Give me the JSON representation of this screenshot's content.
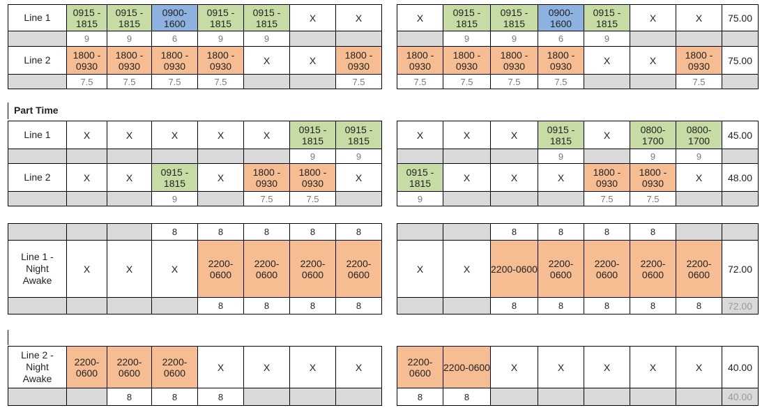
{
  "section_label": "Part Time",
  "blocks": [
    {
      "id": "ft",
      "top": 6,
      "rows": [
        {
          "kind": "main",
          "h": 38,
          "label": "Line 1",
          "total": "75.00",
          "left": [
            [
              "0915 - 1815",
              "g"
            ],
            [
              "0915 - 1815",
              "g"
            ],
            [
              "0900-1600",
              "b"
            ],
            [
              "0915 - 1815",
              "g"
            ],
            [
              "0915 - 1815",
              "g"
            ],
            [
              "X",
              "w"
            ],
            [
              "X",
              "w"
            ]
          ],
          "right": [
            [
              "X",
              "w"
            ],
            [
              "0915 - 1815",
              "g"
            ],
            [
              "0915 - 1815",
              "g"
            ],
            [
              "0900-1600",
              "b"
            ],
            [
              "0915 - 1815",
              "g"
            ],
            [
              "X",
              "w"
            ],
            [
              "X",
              "w"
            ]
          ]
        },
        {
          "kind": "sub",
          "h": 22,
          "label": "",
          "total": "",
          "left": [
            [
              "9",
              "w"
            ],
            [
              "9",
              "w"
            ],
            [
              "6",
              "w"
            ],
            [
              "9",
              "w"
            ],
            [
              "9",
              "w"
            ],
            [
              "",
              "gy"
            ],
            [
              "",
              "gy"
            ]
          ],
          "right": [
            [
              "",
              "gy"
            ],
            [
              "9",
              "w"
            ],
            [
              "9",
              "w"
            ],
            [
              "6",
              "w"
            ],
            [
              "9",
              "w"
            ],
            [
              "",
              "gy"
            ],
            [
              "",
              "gy"
            ]
          ]
        },
        {
          "kind": "main",
          "h": 40,
          "label": "Line 2",
          "total": "75.00",
          "left": [
            [
              "1800 - 0930",
              "o"
            ],
            [
              "1800 - 0930",
              "o"
            ],
            [
              "1800 - 0930",
              "o"
            ],
            [
              "1800 - 0930",
              "o"
            ],
            [
              "X",
              "w"
            ],
            [
              "X",
              "w"
            ],
            [
              "1800 - 0930",
              "o"
            ]
          ],
          "right": [
            [
              "1800 - 0930",
              "o"
            ],
            [
              "1800 - 0930",
              "o"
            ],
            [
              "1800 - 0930",
              "o"
            ],
            [
              "1800 - 0930",
              "o"
            ],
            [
              "X",
              "w"
            ],
            [
              "X",
              "w"
            ],
            [
              "1800 - 0930",
              "o"
            ]
          ]
        },
        {
          "kind": "sub",
          "h": 21,
          "label": "",
          "total": "",
          "left": [
            [
              "7.5",
              "w"
            ],
            [
              "7.5",
              "w"
            ],
            [
              "7.5",
              "w"
            ],
            [
              "7.5",
              "w"
            ],
            [
              "",
              "gy"
            ],
            [
              "",
              "gy"
            ],
            [
              "7.5",
              "w"
            ]
          ],
          "right": [
            [
              "7.5",
              "w"
            ],
            [
              "7.5",
              "w"
            ],
            [
              "7.5",
              "w"
            ],
            [
              "7.5",
              "w"
            ],
            [
              "",
              "gy"
            ],
            [
              "",
              "gy"
            ],
            [
              "7.5",
              "w"
            ]
          ]
        }
      ]
    },
    {
      "id": "pt",
      "top": 173,
      "rows": [
        {
          "kind": "main",
          "h": 40,
          "label": "Line 1",
          "total": "45.00",
          "left": [
            [
              "X",
              "w"
            ],
            [
              "X",
              "w"
            ],
            [
              "X",
              "w"
            ],
            [
              "X",
              "w"
            ],
            [
              "X",
              "w"
            ],
            [
              "0915 - 1815",
              "g"
            ],
            [
              "0915 - 1815",
              "g"
            ]
          ],
          "right": [
            [
              "X",
              "w"
            ],
            [
              "X",
              "w"
            ],
            [
              "X",
              "w"
            ],
            [
              "0915 - 1815",
              "g"
            ],
            [
              "X",
              "w"
            ],
            [
              "0800-1700",
              "g"
            ],
            [
              "0800-1700",
              "g"
            ]
          ]
        },
        {
          "kind": "sub",
          "h": 21,
          "label": "",
          "total": "",
          "left": [
            [
              "",
              "gy"
            ],
            [
              "",
              "gy"
            ],
            [
              "",
              "gy"
            ],
            [
              "",
              "gy"
            ],
            [
              "",
              "gy"
            ],
            [
              "9",
              "w"
            ],
            [
              "9",
              "w"
            ]
          ],
          "right": [
            [
              "",
              "gy"
            ],
            [
              "",
              "gy"
            ],
            [
              "",
              "gy"
            ],
            [
              "9",
              "w"
            ],
            [
              "",
              "gy"
            ],
            [
              "9",
              "w"
            ],
            [
              "9",
              "w"
            ]
          ]
        },
        {
          "kind": "main",
          "h": 40,
          "label": "Line 2",
          "total": "48.00",
          "left": [
            [
              "X",
              "w"
            ],
            [
              "X",
              "w"
            ],
            [
              "0915 - 1815",
              "g"
            ],
            [
              "X",
              "w"
            ],
            [
              "1800 - 0930",
              "o"
            ],
            [
              "1800 - 0930",
              "o"
            ],
            [
              "X",
              "w"
            ]
          ],
          "right": [
            [
              "0915 - 1815",
              "g"
            ],
            [
              "X",
              "w"
            ],
            [
              "X",
              "w"
            ],
            [
              "X",
              "w"
            ],
            [
              "1800 - 0930",
              "o"
            ],
            [
              "1800 - 0930",
              "o"
            ],
            [
              "X",
              "w"
            ]
          ]
        },
        {
          "kind": "sub",
          "h": 21,
          "label": "",
          "total": "",
          "left": [
            [
              "",
              "gy"
            ],
            [
              "",
              "gy"
            ],
            [
              "9",
              "w"
            ],
            [
              "",
              "gy"
            ],
            [
              "7.5",
              "w"
            ],
            [
              "7.5",
              "w"
            ],
            [
              "",
              "gy"
            ]
          ],
          "right": [
            [
              "9",
              "w"
            ],
            [
              "",
              "gy"
            ],
            [
              "",
              "gy"
            ],
            [
              "",
              "gy"
            ],
            [
              "7.5",
              "w"
            ],
            [
              "7.5",
              "w"
            ],
            [
              "",
              "gy"
            ]
          ]
        }
      ]
    },
    {
      "id": "na1",
      "top": 320,
      "rows": [
        {
          "kind": "sub2",
          "h": 24,
          "label": "",
          "total": "",
          "left": [
            [
              "",
              "gy"
            ],
            [
              "",
              "gy"
            ],
            [
              "8",
              "w"
            ],
            [
              "8",
              "w"
            ],
            [
              "8",
              "w"
            ],
            [
              "8",
              "w"
            ],
            [
              "8",
              "w"
            ]
          ],
          "right": [
            [
              "",
              "gy"
            ],
            [
              "",
              "gy"
            ],
            [
              "8",
              "w"
            ],
            [
              "8",
              "w"
            ],
            [
              "8",
              "w"
            ],
            [
              "8",
              "w"
            ],
            [
              "",
              "gy"
            ]
          ]
        },
        {
          "kind": "main",
          "h": 82,
          "label": "Line 1 - Night Awake",
          "total": "72.00",
          "left": [
            [
              "X",
              "w"
            ],
            [
              "X",
              "w"
            ],
            [
              "X",
              "w"
            ],
            [
              "2200-0600",
              "o"
            ],
            [
              "2200-0600",
              "o"
            ],
            [
              "2200-0600",
              "o"
            ],
            [
              "2200-0600",
              "o"
            ]
          ],
          "right": [
            [
              "X",
              "w"
            ],
            [
              "X",
              "w"
            ],
            [
              "2200-0600",
              "o"
            ],
            [
              "2200-0600",
              "o"
            ],
            [
              "2200-0600",
              "o"
            ],
            [
              "2200-0600",
              "o"
            ],
            [
              "2200-0600",
              "o"
            ]
          ]
        },
        {
          "kind": "sub2",
          "h": 24,
          "label": "",
          "total": "72.00",
          "left": [
            [
              "",
              "gy"
            ],
            [
              "",
              "gy"
            ],
            [
              "",
              "gy"
            ],
            [
              "8",
              "w"
            ],
            [
              "8",
              "w"
            ],
            [
              "8",
              "w"
            ],
            [
              "8",
              "w"
            ]
          ],
          "right": [
            [
              "",
              "gy"
            ],
            [
              "",
              "gy"
            ],
            [
              "8",
              "w"
            ],
            [
              "8",
              "w"
            ],
            [
              "8",
              "w"
            ],
            [
              "8",
              "w"
            ],
            [
              "8",
              "w"
            ]
          ]
        }
      ]
    },
    {
      "id": "na2",
      "top": 496,
      "rows": [
        {
          "kind": "main",
          "h": 60,
          "label": "Line 2 - Night Awake",
          "total": "40.00",
          "left": [
            [
              "2200-0600",
              "o"
            ],
            [
              "2200-0600",
              "o"
            ],
            [
              "2200-0600",
              "o"
            ],
            [
              "X",
              "w"
            ],
            [
              "X",
              "w"
            ],
            [
              "X",
              "w"
            ],
            [
              "X",
              "w"
            ]
          ],
          "right": [
            [
              "2200-0600",
              "o"
            ],
            [
              "2200-0600",
              "o"
            ],
            [
              "X",
              "w"
            ],
            [
              "X",
              "w"
            ],
            [
              "X",
              "w"
            ],
            [
              "X",
              "w"
            ],
            [
              "X",
              "w"
            ]
          ]
        },
        {
          "kind": "sub2",
          "h": 25,
          "label": "",
          "total": "40.00",
          "left": [
            [
              "",
              "gy"
            ],
            [
              "8",
              "w"
            ],
            [
              "8",
              "w"
            ],
            [
              "8",
              "w"
            ],
            [
              "",
              "gy"
            ],
            [
              "",
              "gy"
            ],
            [
              "",
              "gy"
            ]
          ],
          "right": [
            [
              "8",
              "w"
            ],
            [
              "8",
              "w"
            ],
            [
              "",
              "gy"
            ],
            [
              "",
              "gy"
            ],
            [
              "",
              "gy"
            ],
            [
              "",
              "gy"
            ],
            [
              "",
              "gy"
            ]
          ]
        }
      ]
    }
  ]
}
